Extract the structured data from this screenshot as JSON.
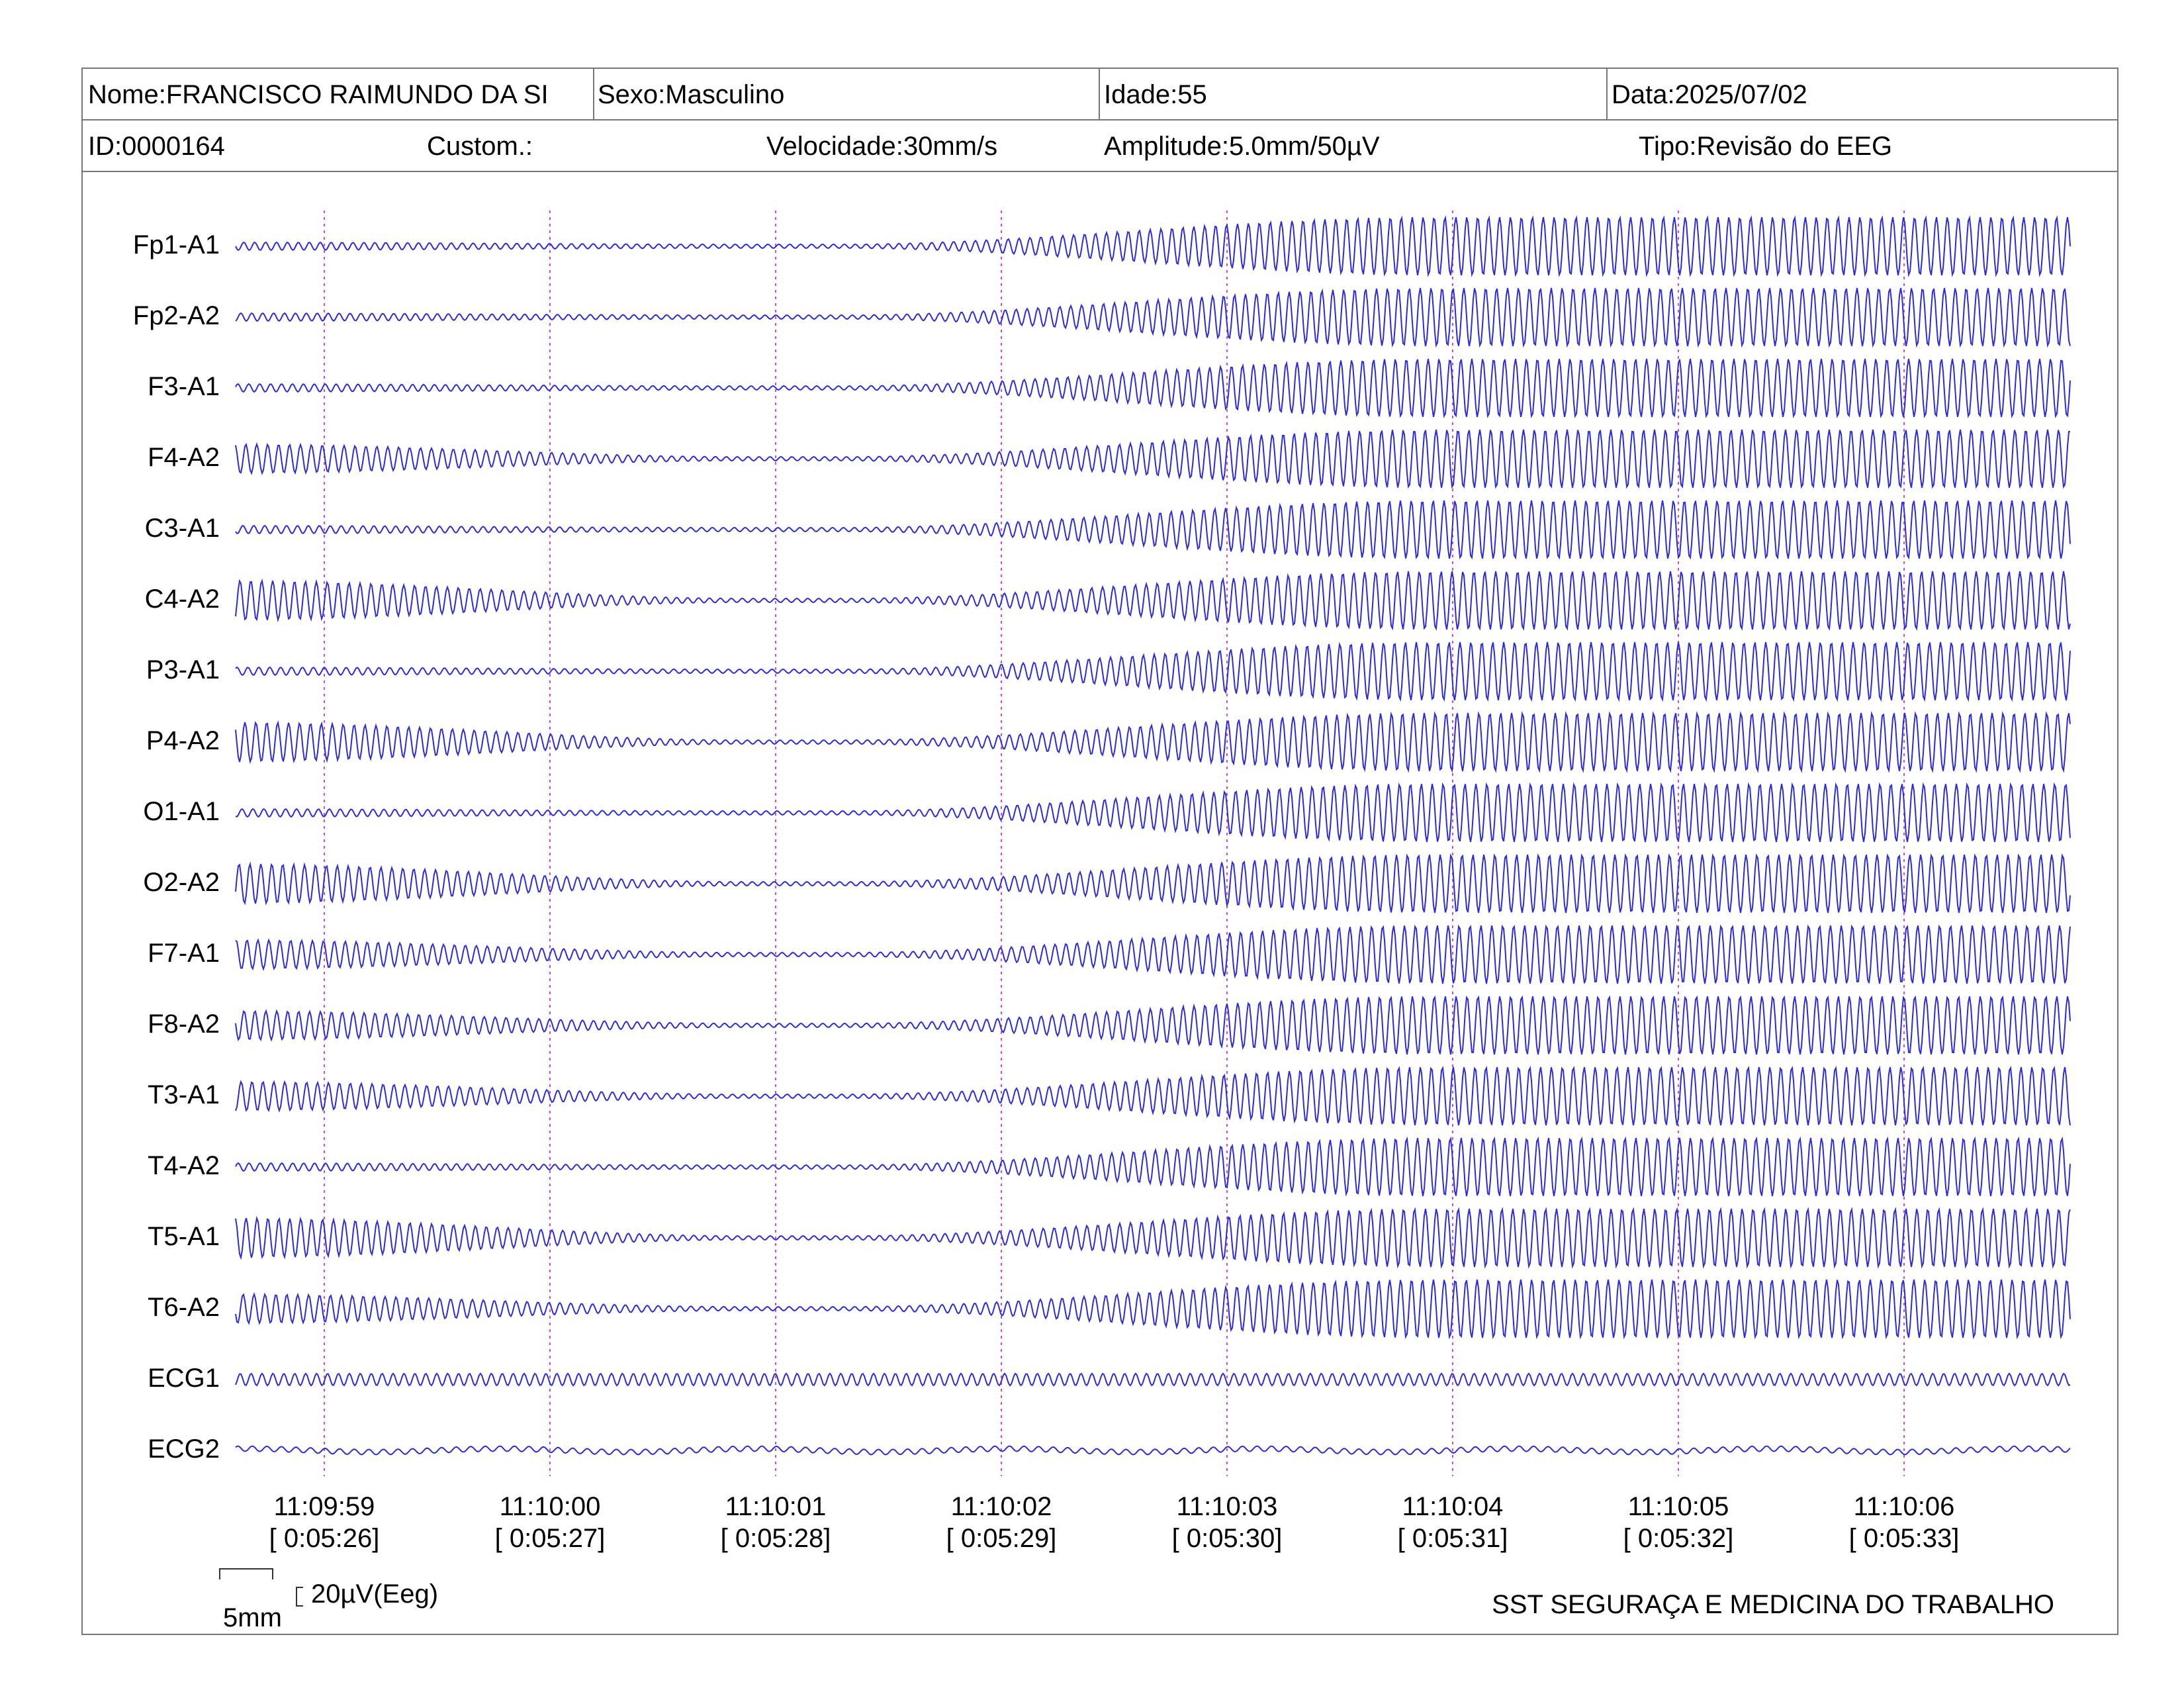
{
  "header": {
    "name": "Nome:FRANCISCO RAIMUNDO DA SI",
    "sex": "Sexo:Masculino",
    "age": "Idade:55",
    "date": "Data:2025/07/02",
    "id": "ID:0000164",
    "custom": "Custom.:",
    "speed": "Velocidade:30mm/s",
    "amplitude": "Amplitude:5.0mm/50µV",
    "type": "Tipo:Revisão do EEG"
  },
  "channels": [
    "Fp1-A1",
    "Fp2-A2",
    "F3-A1",
    "F4-A2",
    "C3-A1",
    "C4-A2",
    "P3-A1",
    "P4-A2",
    "O1-A1",
    "O2-A2",
    "F7-A1",
    "F8-A2",
    "T3-A1",
    "T4-A2",
    "T5-A1",
    "T6-A2",
    "ECG1",
    "ECG2"
  ],
  "time_marks": [
    {
      "clock": "11:09:59",
      "elapsed": "[ 0:05:26]"
    },
    {
      "clock": "11:10:00",
      "elapsed": "[ 0:05:27]"
    },
    {
      "clock": "11:10:01",
      "elapsed": "[ 0:05:28]"
    },
    {
      "clock": "11:10:02",
      "elapsed": "[ 0:05:29]"
    },
    {
      "clock": "11:10:03",
      "elapsed": "[ 0:05:30]"
    },
    {
      "clock": "11:10:04",
      "elapsed": "[ 0:05:31]"
    },
    {
      "clock": "11:10:05",
      "elapsed": "[ 0:05:32]"
    },
    {
      "clock": "11:10:06",
      "elapsed": "[ 0:05:33]"
    }
  ],
  "scale": {
    "horizontal": "5mm",
    "vertical": "20µV(Eeg)"
  },
  "footer": {
    "company": "SST SEGURAÇA E MEDICINA DO TRABALHO"
  },
  "colors": {
    "trace": "#2b2bdb",
    "marker": "#d04ad0",
    "border": "#777777"
  }
}
